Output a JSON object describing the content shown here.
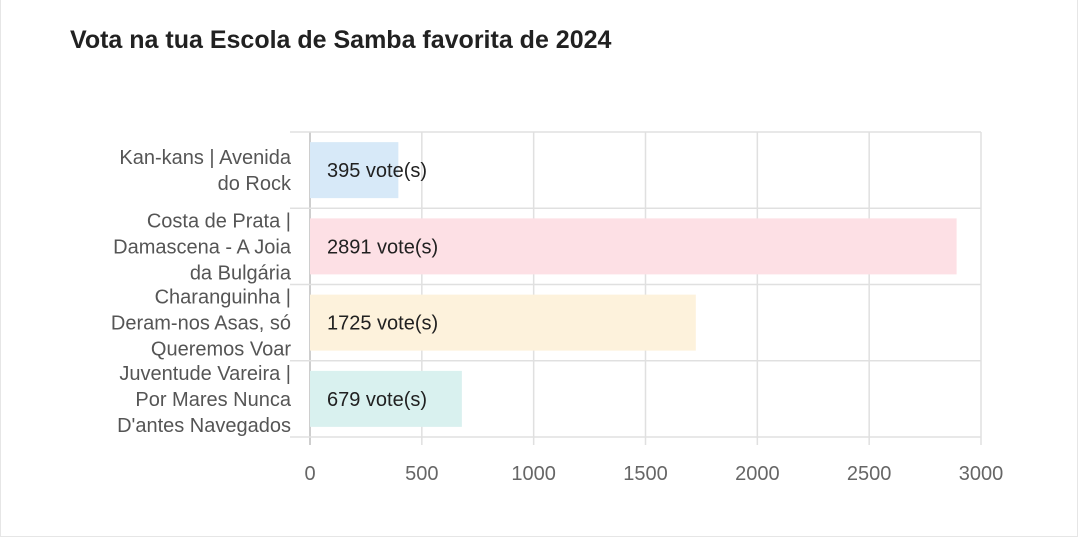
{
  "chart_data": {
    "type": "bar",
    "orientation": "horizontal",
    "title": "Vota na tua Escola de Samba favorita de 2024",
    "categories": [
      [
        "Kan-kans | Avenida",
        "do Rock"
      ],
      [
        "Costa de Prata |",
        "Damascena - A Joia",
        "da Bulgária"
      ],
      [
        "Charanguinha |",
        "Deram-nos Asas, só",
        "Queremos Voar"
      ],
      [
        "Juventude Vareira |",
        "Por Mares Nunca",
        "D'antes Navegados"
      ]
    ],
    "values": [
      395,
      2891,
      1725,
      679
    ],
    "data_labels": [
      "395 vote(s)",
      "2891 vote(s)",
      "1725 vote(s)",
      "679 vote(s)"
    ],
    "bar_colors": [
      "#d7e9f8",
      "#fde0e5",
      "#fdf2dc",
      "#d9f1ef"
    ],
    "xlim": [
      0,
      3000
    ],
    "xticks": [
      0,
      500,
      1000,
      1500,
      2000,
      2500,
      3000
    ],
    "xtick_labels": [
      "0",
      "500",
      "1000",
      "1500",
      "2000",
      "2500",
      "3000"
    ],
    "grid": true,
    "xlabel": "",
    "ylabel": ""
  }
}
